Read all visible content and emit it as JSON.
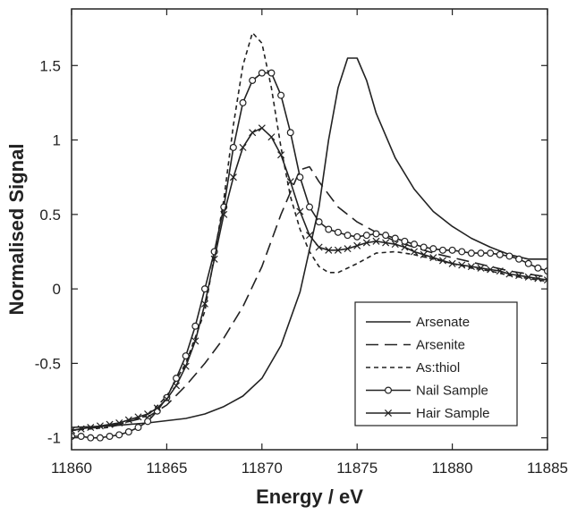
{
  "chart_data": {
    "type": "line",
    "title": "",
    "xlabel": "Energy / eV",
    "ylabel": "Normalised Signal",
    "xlim": [
      11860,
      11885
    ],
    "ylim": [
      -1.08,
      1.88
    ],
    "xticks": [
      11860,
      11865,
      11870,
      11875,
      11880,
      11885
    ],
    "xtick_labels": [
      "11860",
      "11865",
      "11870",
      "11875",
      "11880",
      "11885"
    ],
    "yticks": [
      -1,
      -0.5,
      0,
      0.5,
      1,
      1.5
    ],
    "ytick_labels": [
      "-1",
      "-0.5",
      "0",
      "0.5",
      "1",
      "1.5"
    ],
    "grid": false,
    "legend_position": "bottom-right",
    "series": [
      {
        "name": "Arsenate",
        "style": "solid",
        "marker": "none",
        "x": [
          11860,
          11862,
          11864,
          11866,
          11867,
          11868,
          11869,
          11870,
          11871,
          11872,
          11873,
          11873.5,
          11874,
          11874.5,
          11875,
          11875.5,
          11876,
          11877,
          11878,
          11879,
          11880,
          11881,
          11882,
          11883,
          11884,
          11885
        ],
        "y": [
          -0.93,
          -0.92,
          -0.9,
          -0.87,
          -0.84,
          -0.79,
          -0.72,
          -0.6,
          -0.38,
          -0.02,
          0.55,
          1.0,
          1.35,
          1.55,
          1.55,
          1.4,
          1.18,
          0.88,
          0.67,
          0.52,
          0.42,
          0.34,
          0.28,
          0.23,
          0.2,
          0.2
        ]
      },
      {
        "name": "Arsenite",
        "style": "dashed",
        "marker": "none",
        "x": [
          11860,
          11862,
          11864,
          11865,
          11866,
          11867,
          11868,
          11869,
          11870,
          11871,
          11872,
          11872.5,
          11873,
          11874,
          11875,
          11876,
          11877,
          11878,
          11879,
          11880,
          11881,
          11882,
          11883,
          11884,
          11885
        ],
        "y": [
          -0.95,
          -0.92,
          -0.86,
          -0.78,
          -0.65,
          -0.5,
          -0.33,
          -0.12,
          0.15,
          0.5,
          0.8,
          0.82,
          0.72,
          0.55,
          0.45,
          0.38,
          0.32,
          0.28,
          0.24,
          0.21,
          0.18,
          0.15,
          0.12,
          0.1,
          0.08
        ]
      },
      {
        "name": "As:thiol",
        "style": "dotted",
        "marker": "none",
        "x": [
          11860,
          11862,
          11864,
          11865,
          11866,
          11867,
          11868,
          11868.5,
          11869,
          11869.5,
          11870,
          11870.5,
          11871,
          11871.5,
          11872,
          11872.5,
          11873,
          11873.5,
          11874,
          11875,
          11876,
          11877,
          11878,
          11879,
          11880,
          11881,
          11882,
          11883,
          11884,
          11885
        ],
        "y": [
          -0.95,
          -0.93,
          -0.85,
          -0.72,
          -0.5,
          -0.15,
          0.6,
          1.1,
          1.5,
          1.72,
          1.65,
          1.35,
          0.95,
          0.62,
          0.4,
          0.25,
          0.15,
          0.11,
          0.11,
          0.17,
          0.24,
          0.25,
          0.23,
          0.2,
          0.17,
          0.14,
          0.12,
          0.09,
          0.07,
          0.05
        ]
      },
      {
        "name": "Nail Sample",
        "style": "solid",
        "marker": "circle",
        "x": [
          11860,
          11860.5,
          11861,
          11861.5,
          11862,
          11862.5,
          11863,
          11863.5,
          11864,
          11864.5,
          11865,
          11865.5,
          11866,
          11866.5,
          11867,
          11867.5,
          11868,
          11868.5,
          11869,
          11869.5,
          11870,
          11870.5,
          11871,
          11871.5,
          11872,
          11872.5,
          11873,
          11873.5,
          11874,
          11874.5,
          11875,
          11875.5,
          11876,
          11876.5,
          11877,
          11877.5,
          11878,
          11878.5,
          11879,
          11879.5,
          11880,
          11880.5,
          11881,
          11881.5,
          11882,
          11882.5,
          11883,
          11883.5,
          11884,
          11884.5,
          11885
        ],
        "y": [
          -0.99,
          -0.99,
          -1.0,
          -1.0,
          -0.99,
          -0.98,
          -0.96,
          -0.93,
          -0.89,
          -0.82,
          -0.73,
          -0.6,
          -0.45,
          -0.25,
          0.0,
          0.25,
          0.55,
          0.95,
          1.25,
          1.4,
          1.45,
          1.45,
          1.3,
          1.05,
          0.75,
          0.55,
          0.45,
          0.4,
          0.38,
          0.36,
          0.35,
          0.36,
          0.37,
          0.36,
          0.34,
          0.32,
          0.3,
          0.28,
          0.27,
          0.26,
          0.26,
          0.25,
          0.24,
          0.24,
          0.24,
          0.23,
          0.22,
          0.2,
          0.17,
          0.14,
          0.12
        ]
      },
      {
        "name": "Hair Sample",
        "style": "solid",
        "marker": "cross",
        "x": [
          11860,
          11860.5,
          11861,
          11861.5,
          11862,
          11862.5,
          11863,
          11863.5,
          11864,
          11864.5,
          11865,
          11865.5,
          11866,
          11866.5,
          11867,
          11867.5,
          11868,
          11868.5,
          11869,
          11869.5,
          11870,
          11870.5,
          11871,
          11871.5,
          11872,
          11872.5,
          11873,
          11873.5,
          11874,
          11874.5,
          11875,
          11875.5,
          11876,
          11876.5,
          11877,
          11877.5,
          11878,
          11878.5,
          11879,
          11879.5,
          11880,
          11880.5,
          11881,
          11881.5,
          11882,
          11882.5,
          11883,
          11883.5,
          11884,
          11884.5,
          11885
        ],
        "y": [
          -0.95,
          -0.94,
          -0.93,
          -0.92,
          -0.91,
          -0.9,
          -0.88,
          -0.86,
          -0.84,
          -0.8,
          -0.74,
          -0.65,
          -0.52,
          -0.35,
          -0.1,
          0.2,
          0.5,
          0.75,
          0.95,
          1.05,
          1.08,
          1.02,
          0.9,
          0.72,
          0.52,
          0.36,
          0.28,
          0.26,
          0.26,
          0.27,
          0.29,
          0.31,
          0.32,
          0.31,
          0.3,
          0.28,
          0.25,
          0.23,
          0.21,
          0.19,
          0.17,
          0.16,
          0.15,
          0.14,
          0.13,
          0.12,
          0.1,
          0.09,
          0.08,
          0.07,
          0.06
        ]
      }
    ]
  }
}
